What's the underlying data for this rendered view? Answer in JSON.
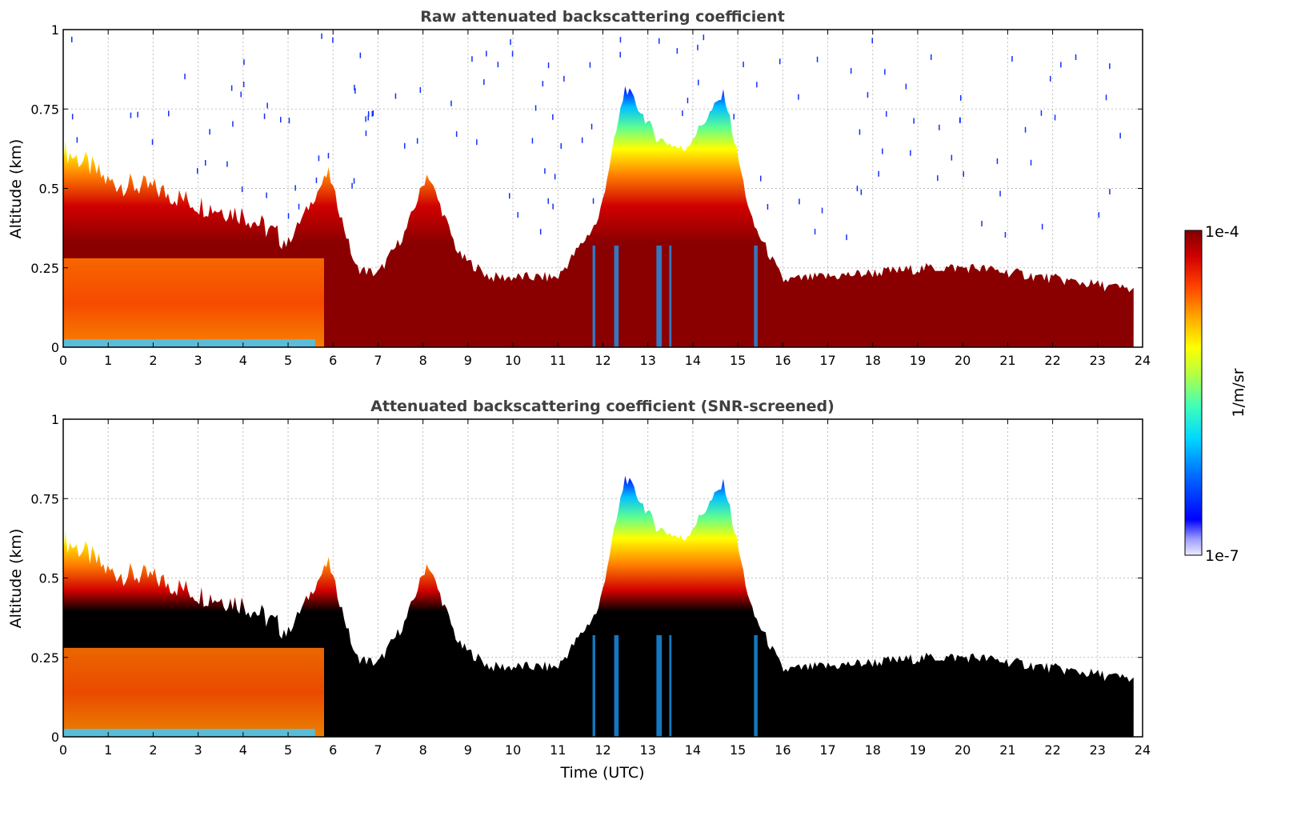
{
  "chart_data": [
    {
      "type": "heatmap",
      "title": "Raw attenuated backscattering coefficient",
      "xlabel": "",
      "ylabel": "Altitude (km)",
      "xlim": [
        0,
        24
      ],
      "ylim": [
        0,
        1
      ],
      "xticks": [
        "0",
        "1",
        "2",
        "3",
        "4",
        "5",
        "6",
        "7",
        "8",
        "9",
        "10",
        "11",
        "12",
        "13",
        "14",
        "15",
        "16",
        "17",
        "18",
        "19",
        "20",
        "21",
        "22",
        "23",
        "24"
      ],
      "yticks": [
        "0",
        "0.25",
        "0.5",
        "0.75",
        "1"
      ],
      "grid": true,
      "colorscale": "jet-log",
      "layer_top_km": [
        {
          "t": 0.0,
          "h": 0.62
        },
        {
          "t": 0.5,
          "h": 0.58
        },
        {
          "t": 1.0,
          "h": 0.52
        },
        {
          "t": 2.0,
          "h": 0.5
        },
        {
          "t": 3.0,
          "h": 0.45
        },
        {
          "t": 4.0,
          "h": 0.42
        },
        {
          "t": 5.0,
          "h": 0.33
        },
        {
          "t": 5.9,
          "h": 0.55
        },
        {
          "t": 6.5,
          "h": 0.25
        },
        {
          "t": 7.0,
          "h": 0.23
        },
        {
          "t": 7.6,
          "h": 0.36
        },
        {
          "t": 8.1,
          "h": 0.55
        },
        {
          "t": 8.8,
          "h": 0.29
        },
        {
          "t": 9.5,
          "h": 0.22
        },
        {
          "t": 11.0,
          "h": 0.22
        },
        {
          "t": 11.9,
          "h": 0.4
        },
        {
          "t": 12.5,
          "h": 0.82
        },
        {
          "t": 13.2,
          "h": 0.66
        },
        {
          "t": 13.8,
          "h": 0.62
        },
        {
          "t": 14.7,
          "h": 0.8
        },
        {
          "t": 15.3,
          "h": 0.4
        },
        {
          "t": 16.0,
          "h": 0.21
        },
        {
          "t": 19.3,
          "h": 0.25
        },
        {
          "t": 20.3,
          "h": 0.25
        },
        {
          "t": 23.8,
          "h": 0.18
        }
      ],
      "data_end_utc": 23.8
    },
    {
      "type": "heatmap",
      "title": "Attenuated backscattering coefficient (SNR-screened)",
      "xlabel": "Time (UTC)",
      "ylabel": "Altitude (km)",
      "xlim": [
        0,
        24
      ],
      "ylim": [
        0,
        1
      ],
      "xticks": [
        "0",
        "1",
        "2",
        "3",
        "4",
        "5",
        "6",
        "7",
        "8",
        "9",
        "10",
        "11",
        "12",
        "13",
        "14",
        "15",
        "16",
        "17",
        "18",
        "19",
        "20",
        "21",
        "22",
        "23",
        "24"
      ],
      "yticks": [
        "0",
        "0.25",
        "0.5",
        "0.75",
        "1"
      ],
      "grid": true,
      "colorscale": "jet-log",
      "saturated_color": "#000000",
      "data_end_utc": 23.8
    }
  ],
  "colorbar": {
    "label": "1/m/sr",
    "max_label": "1e-4",
    "min_label": "1e-7",
    "colors": [
      "#e8e8ff",
      "#b0b0ff",
      "#6060ff",
      "#0000ff",
      "#0050ff",
      "#00a0ff",
      "#00e0ff",
      "#40ffc0",
      "#a0ff60",
      "#ffff00",
      "#ffc000",
      "#ff8000",
      "#ff3000",
      "#e00000",
      "#a00000",
      "#800000"
    ]
  }
}
